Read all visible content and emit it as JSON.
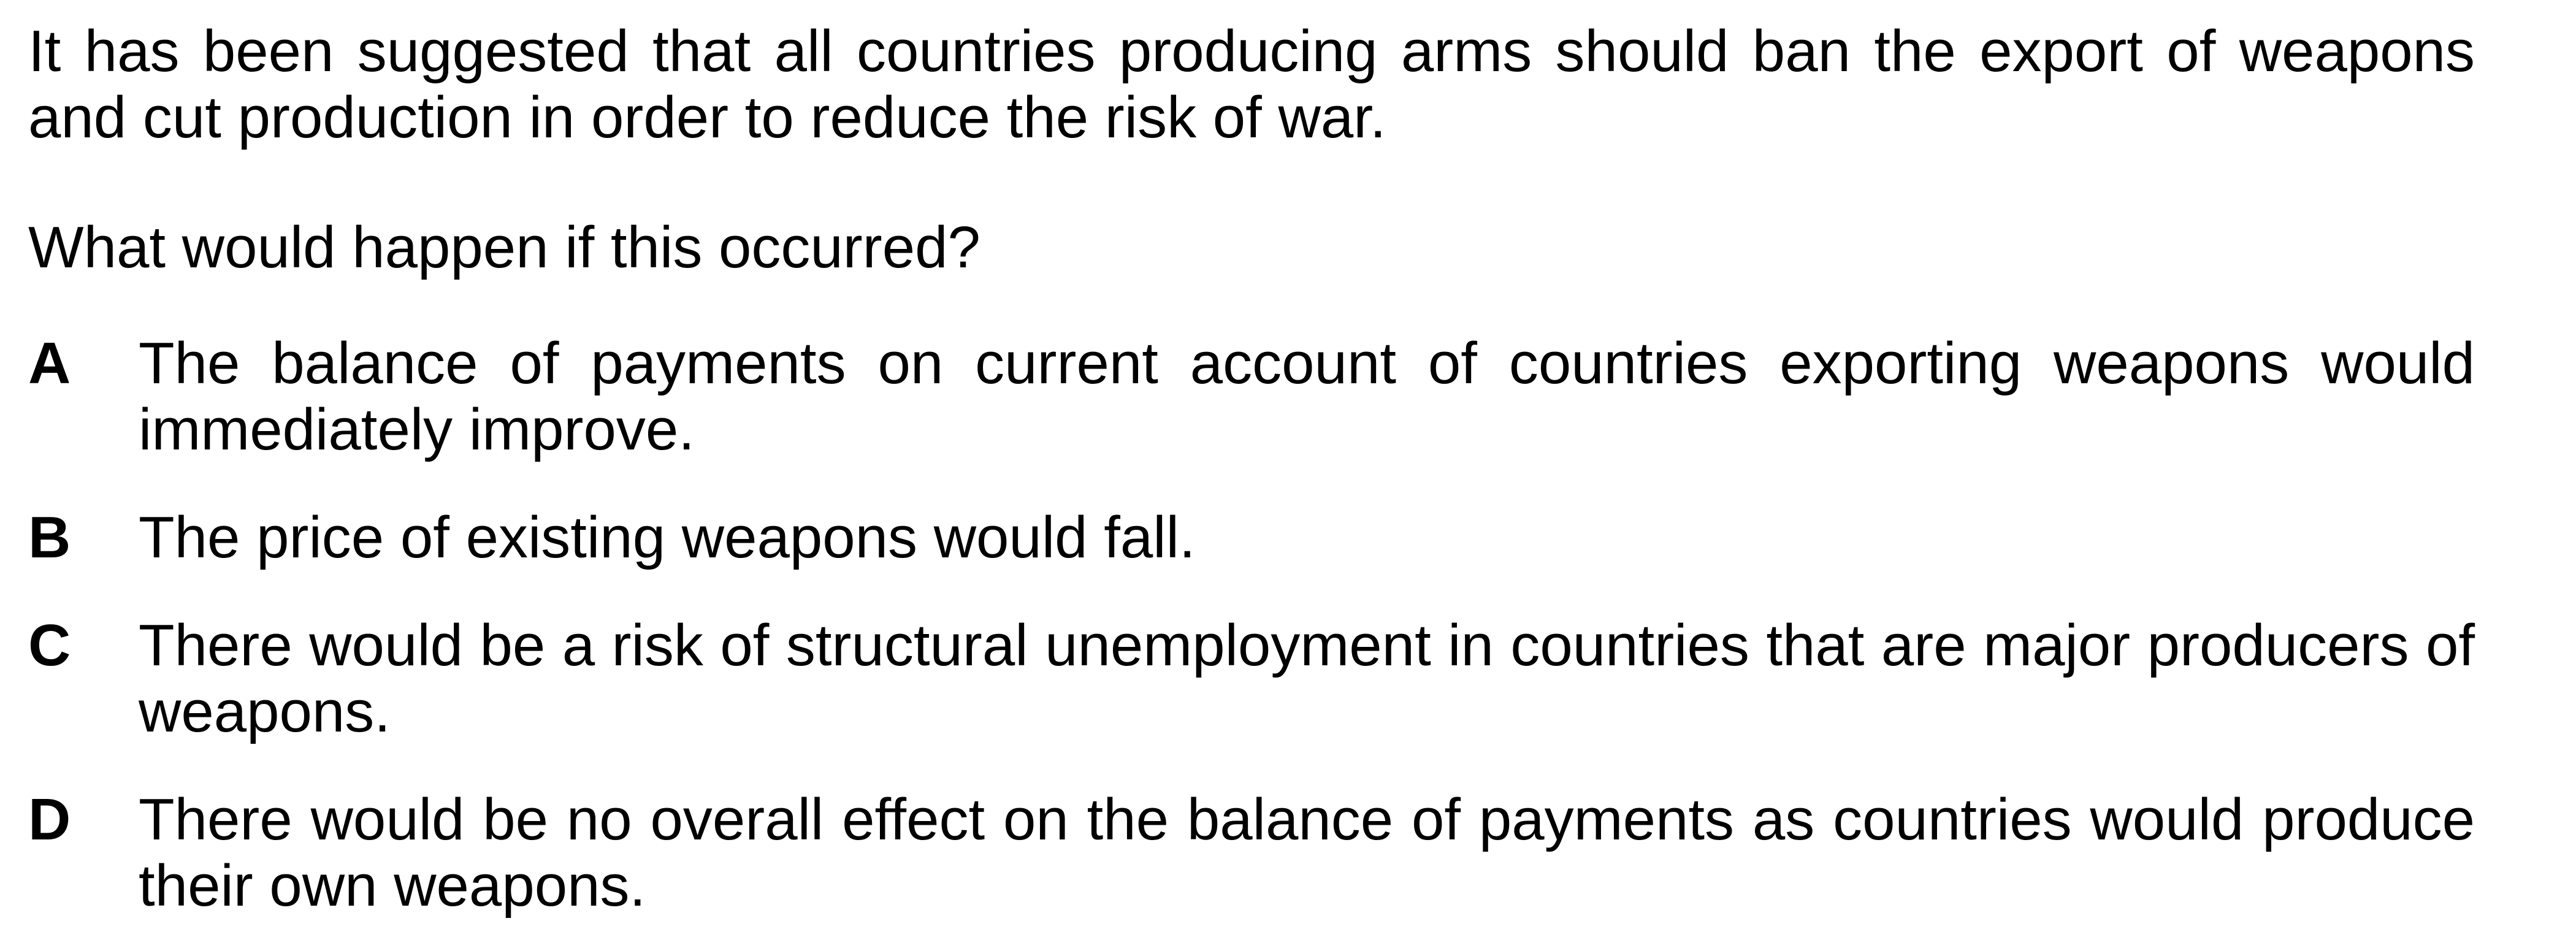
{
  "question": {
    "stem": "It has been suggested that all countries producing arms should ban the export of weapons and cut production in order to reduce the risk of war.",
    "prompt": "What would happen if this occurred?",
    "options": [
      {
        "letter": "A",
        "text": "The balance of payments on current account of countries exporting weapons would immediately improve."
      },
      {
        "letter": "B",
        "text": "The price of existing weapons would fall."
      },
      {
        "letter": "C",
        "text": "There would be a risk of structural unemployment in countries that are major producers of weapons."
      },
      {
        "letter": "D",
        "text": "There would be no overall effect on the balance of payments as countries would produce their own weapons."
      }
    ]
  }
}
